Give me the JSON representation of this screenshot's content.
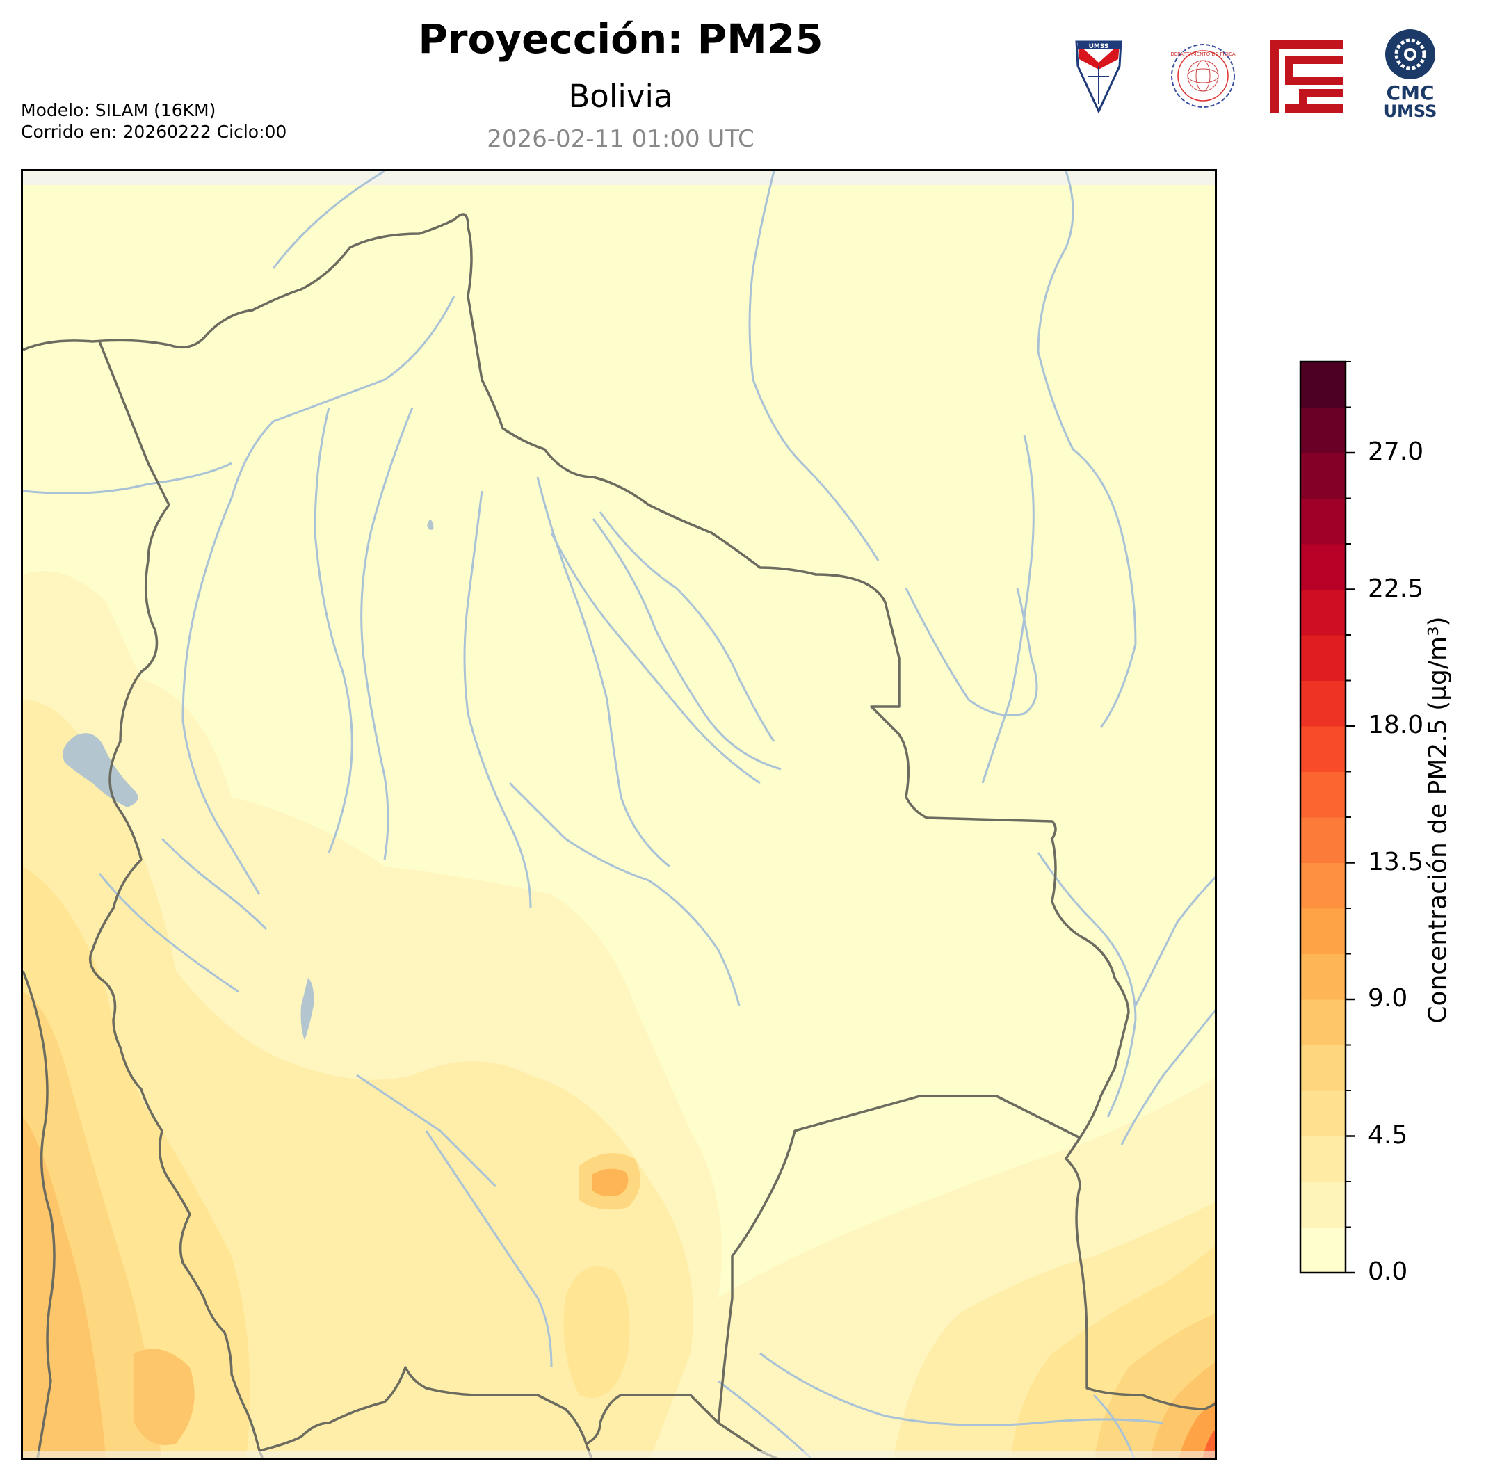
{
  "header": {
    "title": "Proyección: PM25",
    "subtitle": "Bolivia",
    "datetime": "2026-02-11 01:00 UTC"
  },
  "model_info": {
    "line1": "Modelo: SILAM (16KM)",
    "line2": "Corrido en: 20260222 Ciclo:00"
  },
  "logos": {
    "umss_shield_text": "UMSS",
    "physics_seal_text": "DEPARTAMENTO DE FÍSICA",
    "cmc_line1": "CMC",
    "cmc_line2": "UMSS"
  },
  "colorbar": {
    "label": "Concentración de PM2.5 (µg/m³)",
    "ticks": [
      "0.0",
      "4.5",
      "9.0",
      "13.5",
      "18.0",
      "22.5",
      "27.0"
    ],
    "colors": [
      "#fffecc",
      "#fff4b8",
      "#ffeba4",
      "#ffe190",
      "#fed67e",
      "#fec668",
      "#feb556",
      "#fea446",
      "#fd9140",
      "#fd7b39",
      "#fc6530",
      "#f84b29",
      "#ed3323",
      "#e11e1f",
      "#cf0e21",
      "#b90026",
      "#9e0027",
      "#840026",
      "#6a0026",
      "#4d0022"
    ]
  },
  "map": {
    "region": "Bolivia",
    "variable": "PM2.5",
    "value_range": [
      0,
      30
    ]
  },
  "colors": {
    "country_border": "#6b6b5f",
    "river": "#a9c2d6",
    "lake": "#b3c6d0",
    "frame": "#000000"
  }
}
